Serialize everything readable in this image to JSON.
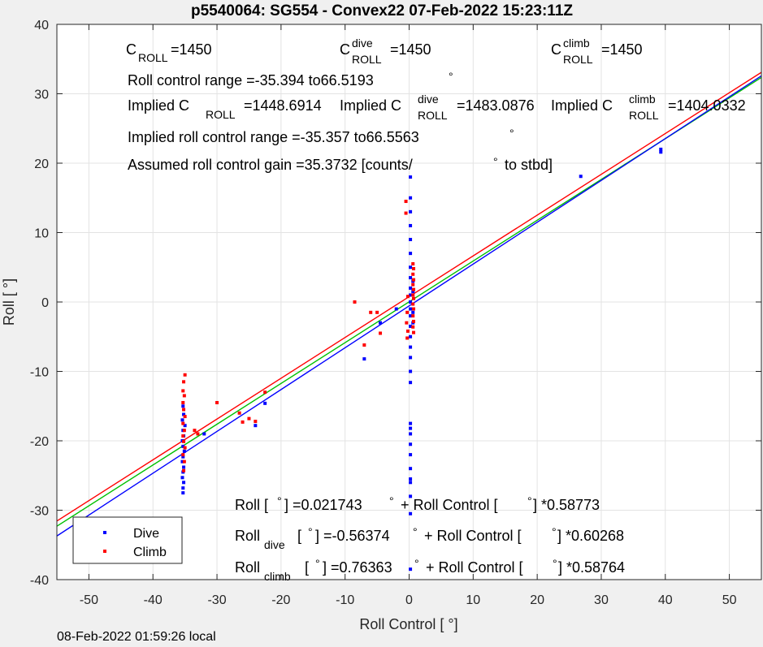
{
  "footer_text": "08-Feb-2022 01:59:26 local",
  "chart_data": {
    "type": "scatter",
    "title": "p5540064: SG554 - Convex22 07-Feb-2022 15:23:11Z",
    "xlabel": "Roll Control [   °]",
    "ylabel": "Roll [  °]",
    "xlim": [
      -55,
      55
    ],
    "ylim": [
      -40,
      40
    ],
    "xticks": [
      -50,
      -40,
      -30,
      -20,
      -10,
      0,
      10,
      20,
      30,
      40,
      50
    ],
    "yticks": [
      -40,
      -30,
      -20,
      -10,
      0,
      10,
      20,
      30,
      40
    ],
    "grid": true,
    "legend_position": "bottom-left",
    "colors": {
      "dive": "#0000ff",
      "climb": "#ff0000",
      "fit_all": "#00c000",
      "fit_dive": "#0000ff",
      "fit_climb": "#ff0000"
    },
    "series": [
      {
        "name": "Dive",
        "color": "#0000ff",
        "points": [
          [
            -35.3,
            -27.5
          ],
          [
            -35.3,
            -26.8
          ],
          [
            -35.2,
            -26.0
          ],
          [
            -35.4,
            -25.3
          ],
          [
            -35.3,
            -24.5
          ],
          [
            -35.2,
            -23.8
          ],
          [
            -35.4,
            -23.0
          ],
          [
            -35.3,
            -22.3
          ],
          [
            -35.1,
            -21.5
          ],
          [
            -35.3,
            -20.8
          ],
          [
            -35.4,
            -20.0
          ],
          [
            -35.2,
            -19.3
          ],
          [
            -35.3,
            -18.5
          ],
          [
            -35.0,
            -17.8
          ],
          [
            -35.4,
            -17.0
          ],
          [
            -35.2,
            -16.2
          ],
          [
            -35.3,
            -15.0
          ],
          [
            -32.0,
            -19.0
          ],
          [
            -24.0,
            -17.8
          ],
          [
            -22.5,
            -14.6
          ],
          [
            -7.0,
            -8.2
          ],
          [
            -4.5,
            -3.0
          ],
          [
            -2.0,
            -1.0
          ],
          [
            0.2,
            18.0
          ],
          [
            0.2,
            15.0
          ],
          [
            0.2,
            13.0
          ],
          [
            0.2,
            11.0
          ],
          [
            0.2,
            9.0
          ],
          [
            0.2,
            7.0
          ],
          [
            0.2,
            5.0
          ],
          [
            0.2,
            3.5
          ],
          [
            0.2,
            2.0
          ],
          [
            0.2,
            1.0
          ],
          [
            0.2,
            0.0
          ],
          [
            0.2,
            -1.0
          ],
          [
            0.2,
            -2.0
          ],
          [
            0.2,
            -3.5
          ],
          [
            0.2,
            -5.0
          ],
          [
            0.2,
            -6.5
          ],
          [
            0.2,
            -8.0
          ],
          [
            0.2,
            -10.0
          ],
          [
            0.2,
            -11.6
          ],
          [
            0.2,
            -17.5
          ],
          [
            0.2,
            -18.2
          ],
          [
            0.2,
            -19.0
          ],
          [
            0.2,
            -20.5
          ],
          [
            0.2,
            -22.0
          ],
          [
            0.2,
            -24.0
          ],
          [
            0.2,
            -25.5
          ],
          [
            0.2,
            -26.0
          ],
          [
            0.2,
            -28.0
          ],
          [
            0.2,
            -30.5
          ],
          [
            0.2,
            -38.5
          ],
          [
            0.6,
            3.0
          ],
          [
            0.6,
            1.5
          ],
          [
            0.6,
            -1.5
          ],
          [
            0.6,
            -3.0
          ],
          [
            26.8,
            18.1
          ],
          [
            39.3,
            22.0
          ],
          [
            39.3,
            21.6
          ]
        ]
      },
      {
        "name": "Climb",
        "color": "#ff0000",
        "points": [
          [
            -35.0,
            -10.5
          ],
          [
            -35.2,
            -11.5
          ],
          [
            -35.3,
            -12.8
          ],
          [
            -35.1,
            -13.5
          ],
          [
            -35.3,
            -14.5
          ],
          [
            -35.2,
            -15.5
          ],
          [
            -35.0,
            -16.5
          ],
          [
            -35.3,
            -17.5
          ],
          [
            -35.1,
            -18.5
          ],
          [
            -35.3,
            -19.3
          ],
          [
            -35.2,
            -20.1
          ],
          [
            -35.0,
            -21.0
          ],
          [
            -35.3,
            -22.0
          ],
          [
            -35.1,
            -23.0
          ],
          [
            -35.2,
            -24.3
          ],
          [
            -33.5,
            -18.5
          ],
          [
            -33.0,
            -19.0
          ],
          [
            -30.0,
            -14.5
          ],
          [
            -26.5,
            -16.0
          ],
          [
            -26.0,
            -17.3
          ],
          [
            -25.0,
            -16.8
          ],
          [
            -24.0,
            -17.2
          ],
          [
            -22.5,
            -13.0
          ],
          [
            -8.5,
            0.0
          ],
          [
            -7.0,
            -6.2
          ],
          [
            -6.0,
            -1.5
          ],
          [
            -5.0,
            -1.5
          ],
          [
            -4.5,
            -4.5
          ],
          [
            -0.5,
            14.5
          ],
          [
            -0.5,
            12.8
          ],
          [
            -0.2,
            0.8
          ],
          [
            -0.3,
            -1.5
          ],
          [
            -0.4,
            -3.0
          ],
          [
            -0.2,
            -4.2
          ],
          [
            -0.3,
            -5.2
          ],
          [
            0.6,
            5.5
          ],
          [
            0.7,
            4.8
          ],
          [
            0.6,
            4.0
          ],
          [
            0.7,
            3.2
          ],
          [
            0.6,
            2.5
          ],
          [
            0.7,
            1.8
          ],
          [
            0.6,
            1.0
          ],
          [
            0.7,
            0.5
          ],
          [
            0.6,
            -0.3
          ],
          [
            0.7,
            -1.0
          ],
          [
            0.6,
            -2.0
          ],
          [
            0.7,
            -2.8
          ],
          [
            0.6,
            -3.6
          ],
          [
            0.7,
            -4.4
          ]
        ]
      }
    ],
    "fit_lines": [
      {
        "label": "all",
        "color": "#00c000",
        "intercept": 0.021743,
        "slope": 0.58773
      },
      {
        "label": "dive",
        "color": "#0000ff",
        "intercept": -0.56374,
        "slope": 0.60268
      },
      {
        "label": "climb",
        "color": "#ff0000",
        "intercept": 0.76363,
        "slope": 0.58764
      }
    ],
    "legend": {
      "dive": "Dive",
      "climb": "Climb"
    },
    "annotations": {
      "c_roll": "C",
      "c_roll_sub": "ROLL",
      "c_roll_val": "=1450",
      "c_roll_dive_sup": "dive",
      "c_roll_dive_sub": "ROLL",
      "c_roll_dive_val": "=1450",
      "c_roll_climb_sup": "climb",
      "c_roll_climb_sub": "ROLL",
      "c_roll_climb_val": "=1450",
      "roll_range": "Roll control range =-35.394 to66.5193",
      "deg_sym": "°",
      "implied_label": "Implied C",
      "implied_sub": "ROLL",
      "implied_val": "=1448.6914",
      "implied_dive_sup": "dive",
      "implied_dive_sub": "ROLL",
      "implied_dive_val": "=1483.0876",
      "implied_climb_sup": "climb",
      "implied_climb_sub": "ROLL",
      "implied_climb_val": "=1404.0332",
      "implied_range": "Implied roll control range =-35.357 to66.5563",
      "gain_text": "Assumed roll control gain =35.3732 [counts/",
      "gain_tail": "to stbd]",
      "eq1_a": "Roll [  ",
      "eq1_b": "] =0.021743",
      "eq1_c": "+ Roll Control [",
      "eq1_d": "] *0.58773",
      "eq2_a": "Roll",
      "eq2_sub": "dive",
      "eq2_b": "[  ",
      "eq2_c": "] =-0.56374",
      "eq2_d": "+ Roll Control [",
      "eq2_e": "] *0.60268",
      "eq3_a": "Roll",
      "eq3_sub": "climb",
      "eq3_b": "[  ",
      "eq3_c": "] =0.76363",
      "eq3_d": "+ Roll Control [",
      "eq3_e": "] *0.58764"
    }
  }
}
